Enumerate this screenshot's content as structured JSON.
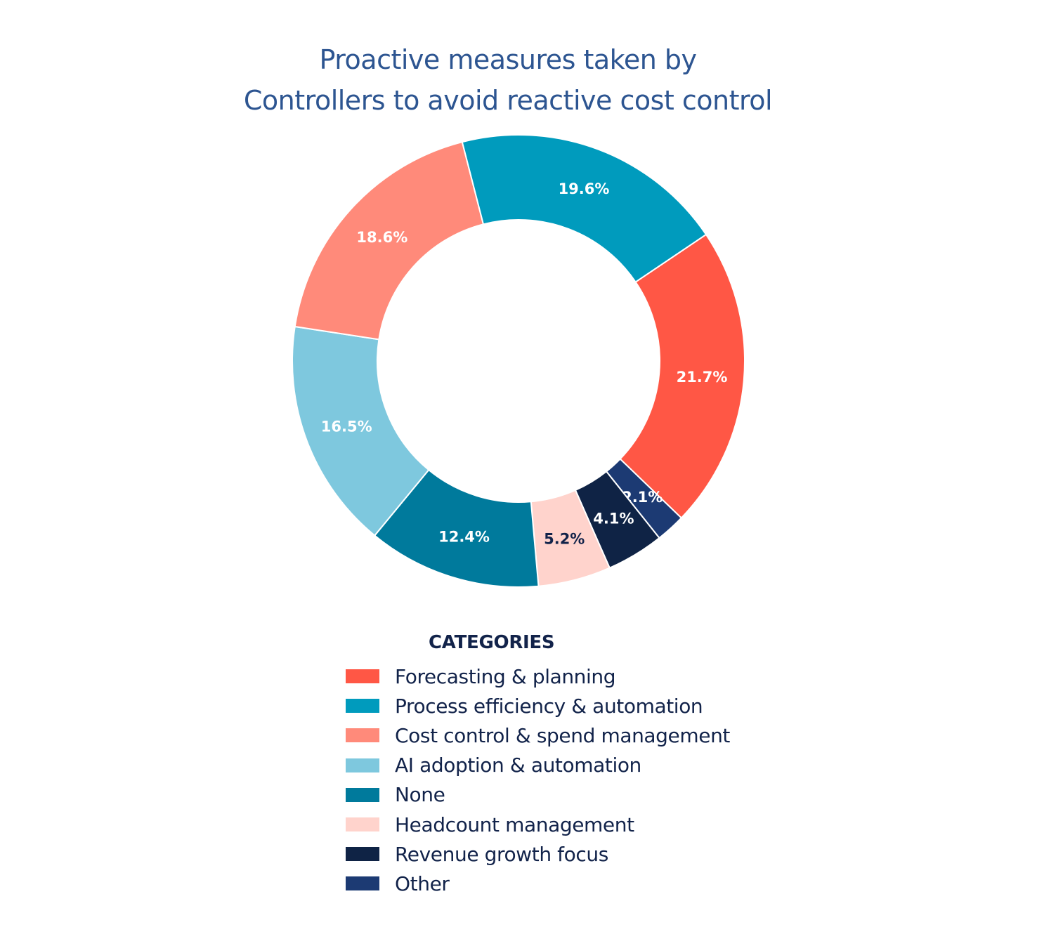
{
  "chart_data": {
    "type": "pie",
    "title": "Proactive measures taken by Controllers to avoid reactive cost control",
    "title_lines": [
      "Proactive measures taken by",
      "Controllers to avoid reactive cost control"
    ],
    "legend_title": "CATEGORIES",
    "legend_placement": "bottom",
    "donut": true,
    "slices": [
      {
        "label": "Forecasting & planning",
        "value": 21.7,
        "value_label": "21.7%",
        "color": "#ff5745",
        "text_color": "#ffffff"
      },
      {
        "label": "Other",
        "value": 2.1,
        "value_label": "2.1%",
        "color": "#1c3a73",
        "text_color": "#ffffff"
      },
      {
        "label": "Revenue growth focus",
        "value": 4.1,
        "value_label": "4.1%",
        "color": "#0f2345",
        "text_color": "#ffffff"
      },
      {
        "label": "Headcount management",
        "value": 5.2,
        "value_label": "5.2%",
        "color": "#ffd3cc",
        "text_color": "#12234a"
      },
      {
        "label": "None",
        "value": 12.4,
        "value_label": "12.4%",
        "color": "#007a9c",
        "text_color": "#ffffff"
      },
      {
        "label": "AI adoption & automation",
        "value": 16.5,
        "value_label": "16.5%",
        "color": "#7ec8de",
        "text_color": "#ffffff"
      },
      {
        "label": "Cost control & spend management",
        "value": 18.6,
        "value_label": "18.6%",
        "color": "#ff8a7a",
        "text_color": "#ffffff"
      },
      {
        "label": "Process efficiency & automation",
        "value": 19.6,
        "value_label": "19.6%",
        "color": "#009bbd",
        "text_color": "#ffffff"
      }
    ],
    "legend": [
      {
        "label": "Forecasting & planning",
        "color": "#ff5745"
      },
      {
        "label": "Process efficiency & automation",
        "color": "#009bbd"
      },
      {
        "label": "Cost control & spend management",
        "color": "#ff8a7a"
      },
      {
        "label": "AI adoption & automation",
        "color": "#7ec8de"
      },
      {
        "label": "None",
        "color": "#007a9c"
      },
      {
        "label": "Headcount management",
        "color": "#ffd3cc"
      },
      {
        "label": "Revenue growth focus",
        "color": "#0f2345"
      },
      {
        "label": "Other",
        "color": "#1c3a73"
      }
    ]
  }
}
